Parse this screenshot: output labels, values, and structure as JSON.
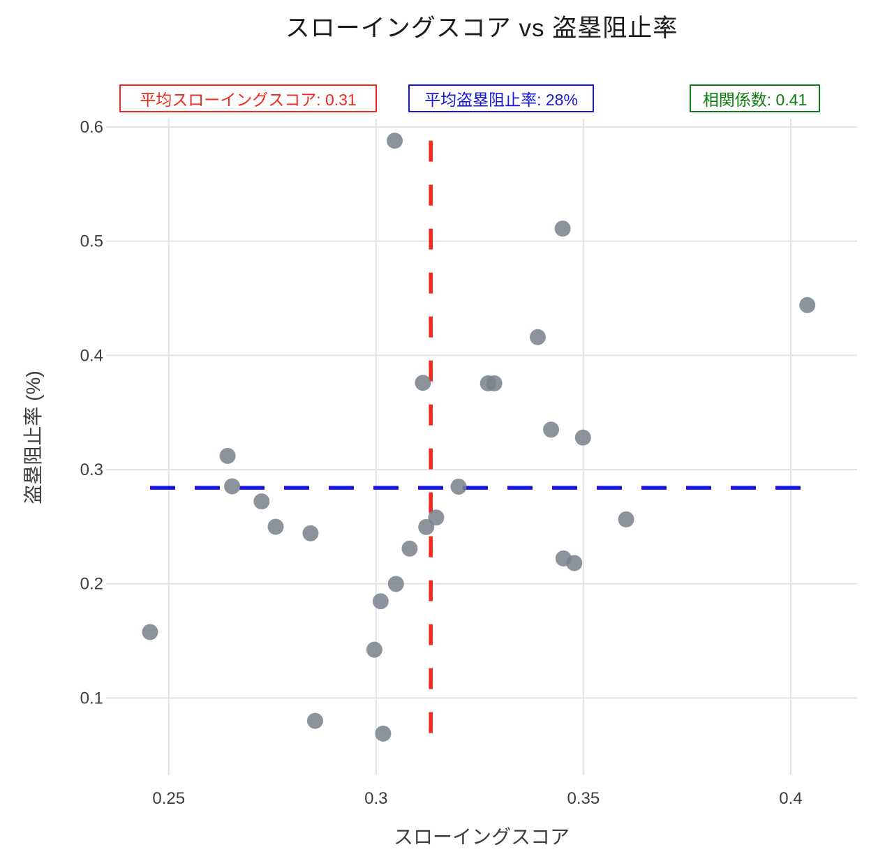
{
  "title": "スローイングスコア vs 盗塁阻止率",
  "annotations": [
    {
      "name": "mean-throwing-score",
      "text": "平均スローイングスコア: 0.31",
      "color": "#f12a1e"
    },
    {
      "name": "mean-caught-stealing",
      "text": "平均盗塁阻止率: 28%",
      "color": "#1717e0"
    },
    {
      "name": "correlation",
      "text": "相関係数: 0.41",
      "color": "#0e7d10"
    }
  ],
  "chart_data": {
    "type": "scatter",
    "title": "スローイングスコア vs 盗塁阻止率",
    "xlabel": "スローイングスコア",
    "ylabel": "盗塁阻止率 (%)",
    "x_ticks": [
      0.25,
      0.3,
      0.35,
      0.4
    ],
    "y_ticks": [
      0.1,
      0.2,
      0.3,
      0.4,
      0.5,
      0.6
    ],
    "xlim": [
      0.2349,
      0.416
    ],
    "ylim": [
      0.0324,
      0.6073
    ],
    "grid": true,
    "legend": false,
    "mean_x": 0.3132,
    "mean_x_label": "0.31",
    "mean_y": 0.284,
    "mean_y_label": "28%",
    "correlation": 0.41,
    "points": [
      [
        0.3045,
        0.588
      ],
      [
        0.345,
        0.511
      ],
      [
        0.404,
        0.444
      ],
      [
        0.339,
        0.416
      ],
      [
        0.3113,
        0.376
      ],
      [
        0.327,
        0.3755
      ],
      [
        0.3285,
        0.3755
      ],
      [
        0.3422,
        0.335
      ],
      [
        0.3499,
        0.328
      ],
      [
        0.2642,
        0.312
      ],
      [
        0.2653,
        0.2853
      ],
      [
        0.3199,
        0.285
      ],
      [
        0.2724,
        0.2721
      ],
      [
        0.3145,
        0.258
      ],
      [
        0.3603,
        0.2564
      ],
      [
        0.3121,
        0.2497
      ],
      [
        0.2758,
        0.2499
      ],
      [
        0.2842,
        0.2442
      ],
      [
        0.3081,
        0.2308
      ],
      [
        0.3452,
        0.2222
      ],
      [
        0.3478,
        0.2181
      ],
      [
        0.3048,
        0.1999
      ],
      [
        0.3011,
        0.1847
      ],
      [
        0.2455,
        0.1577
      ],
      [
        0.2996,
        0.1423
      ],
      [
        0.2853,
        0.08
      ],
      [
        0.3017,
        0.0688
      ]
    ],
    "colors": {
      "marker": "#79808b",
      "mean_x_line": "#f12a1e",
      "mean_y_line": "#1717e0",
      "grid": "#e3e3e3",
      "tick_text": "#3d3d3d",
      "background": "#ffffff"
    }
  }
}
